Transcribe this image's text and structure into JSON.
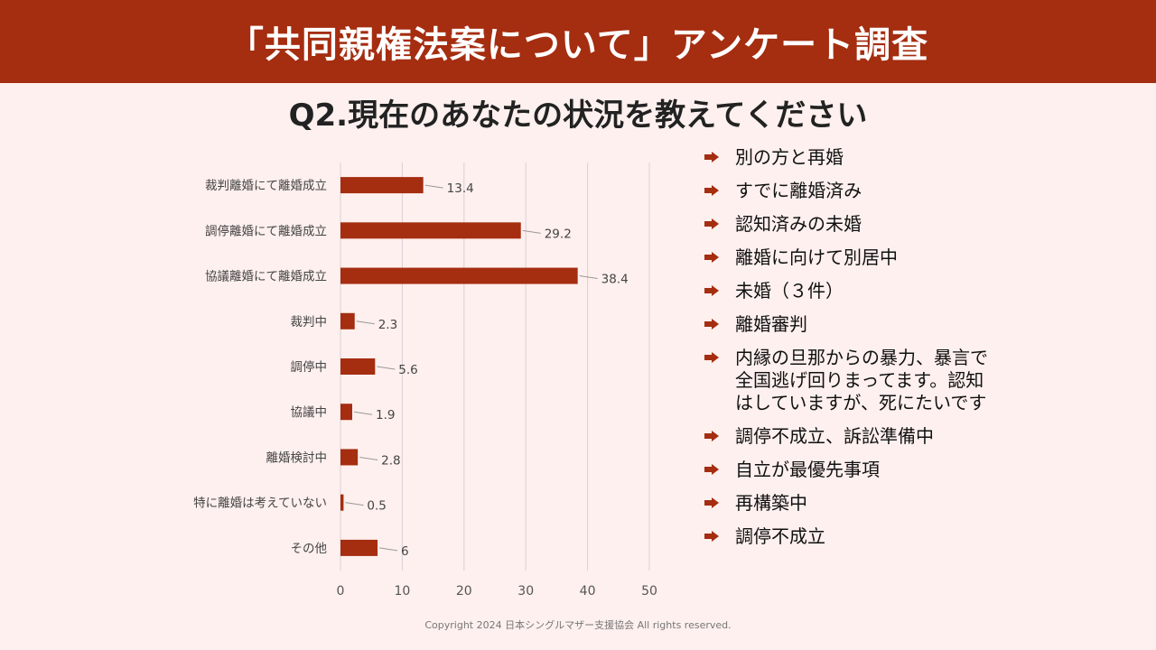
{
  "header": {
    "title": "「共同親権法案について」アンケート調査"
  },
  "question": "Q2.現在のあなたの状況を教えてください",
  "colors": {
    "brand": "#a52d10",
    "bar": "#a52d10",
    "background": "#fdf0ee"
  },
  "chart_data": {
    "type": "bar",
    "orientation": "horizontal",
    "categories": [
      "裁判離婚にて離婚成立",
      "調停離婚にて離婚成立",
      "協議離婚にて離婚成立",
      "裁判中",
      "調停中",
      "協議中",
      "離婚検討中",
      "特に離婚は考えていない",
      "その他"
    ],
    "values": [
      13.4,
      29.2,
      38.4,
      2.3,
      5.6,
      1.9,
      2.8,
      0.5,
      6
    ],
    "value_labels": [
      "13.4",
      "29.2",
      "38.4",
      "2.3",
      "5.6",
      "1.9",
      "2.8",
      "0.5",
      "6"
    ],
    "xlim": [
      0,
      50
    ],
    "xticks": [
      "0",
      "10",
      "20",
      "30",
      "40",
      "50"
    ],
    "xlabel": "",
    "ylabel": "",
    "grid": true
  },
  "other_answers": {
    "items": [
      "別の方と再婚",
      "すでに離婚済み",
      "認知済みの未婚",
      "離婚に向けて別居中",
      "未婚（３件）",
      "離婚審判",
      "内縁の旦那からの暴力、暴言で全国逃げ回りまってます。認知はしていますが、死にたいです",
      "調停不成立、訴訟準備中",
      "自立が最優先事項",
      "再構築中",
      "調停不成立"
    ]
  },
  "footer": {
    "copyright": "Copyright 2024 日本シングルマザー支援協会 All rights reserved."
  }
}
